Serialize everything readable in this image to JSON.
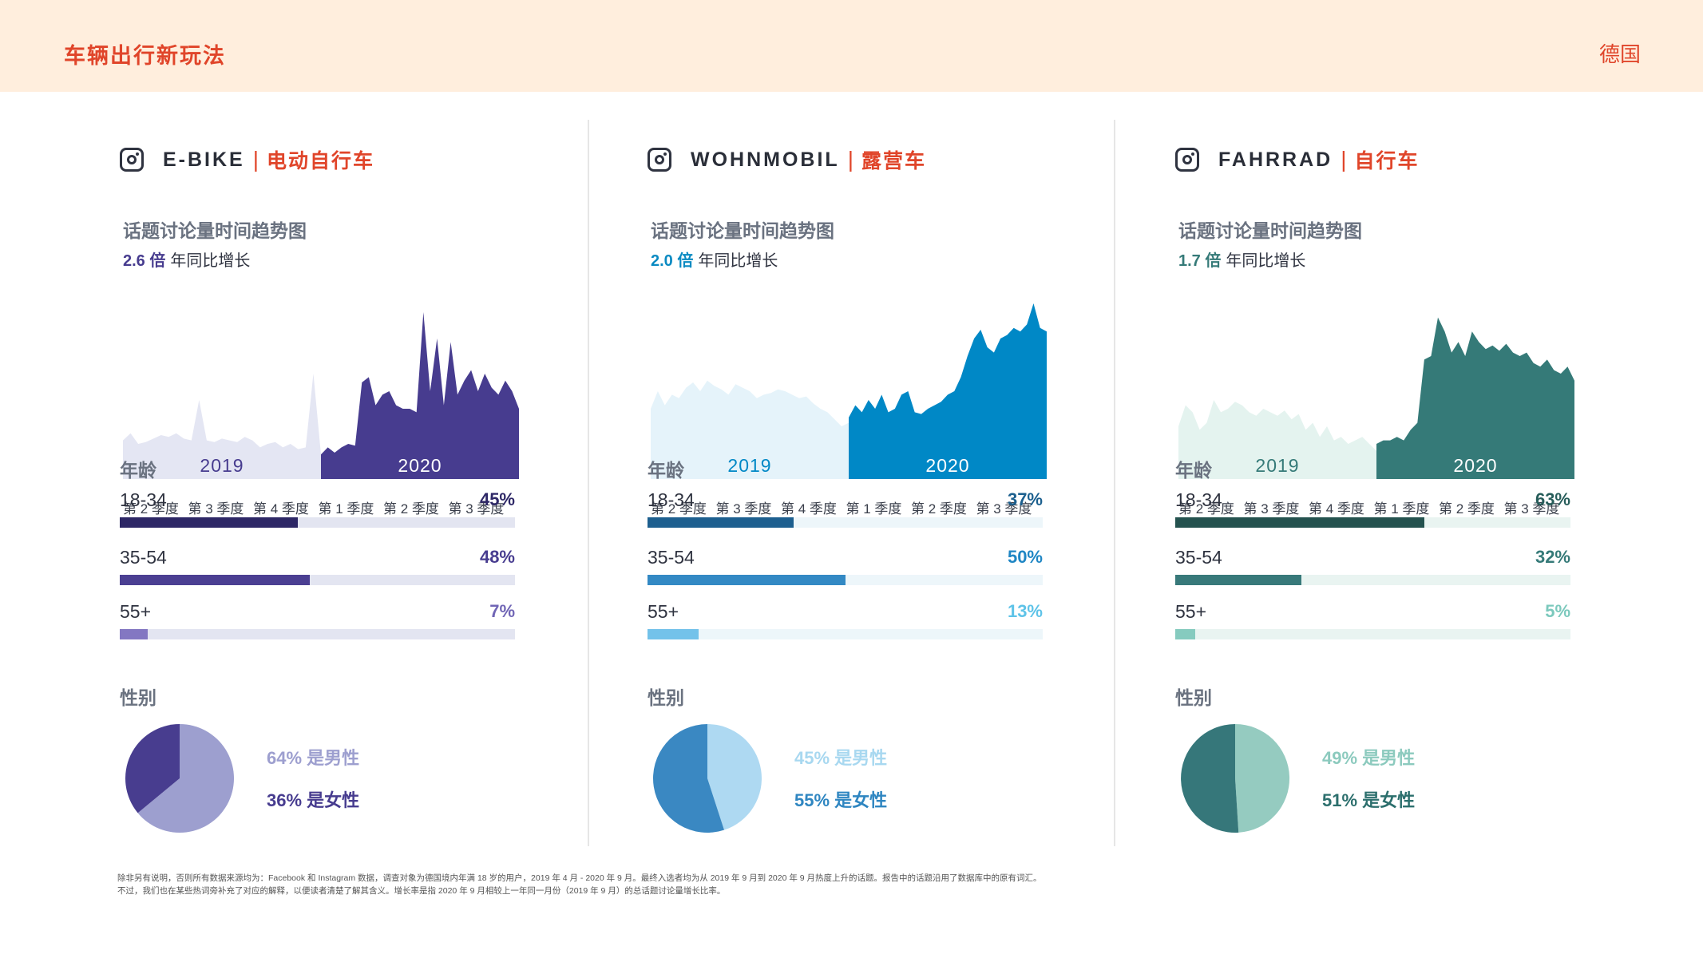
{
  "header": {
    "brand": "车辆出行新玩法",
    "country": "德国"
  },
  "colors": {
    "accent": "#e0452a",
    "header_bg": "#ffeedd"
  },
  "columns": [
    {
      "name_en": "E-BIKE",
      "name_cn": "电动自行车",
      "icon": "instagram-icon",
      "subtitle": "话题讨论量时间趋势图",
      "growth_value": "2.6 倍",
      "growth_label": "年同比增长",
      "age_heading": "年龄",
      "gender_heading": "性别",
      "colors": {
        "dark": "#473c8f",
        "light": "#e4e6f3",
        "growth": "#473c8f",
        "age_bars": [
          "#2d2766",
          "#4b3f92",
          "#8377c2"
        ],
        "age_pcts": [
          "#2d2766",
          "#473c8f",
          "#7065b5"
        ],
        "age_track": "#e3e5f1",
        "pie_male": "#9d9fcf",
        "pie_female": "#483d8f",
        "legend_male": "#9d9fcf",
        "legend_female": "#473c8f"
      },
      "age": [
        {
          "label": "18-34",
          "value": 45,
          "text": "45%"
        },
        {
          "label": "35-54",
          "value": 48,
          "text": "48%"
        },
        {
          "label": "55+",
          "value": 7,
          "text": "7%"
        }
      ],
      "gender": {
        "male": 64,
        "female": 36,
        "male_label": "64% 是男性",
        "female_label": "36% 是女性"
      }
    },
    {
      "name_en": "WOHNMOBIL",
      "name_cn": "露营车",
      "icon": "instagram-icon",
      "subtitle": "话题讨论量时间趋势图",
      "growth_value": "2.0 倍",
      "growth_label": "年同比增长",
      "age_heading": "年龄",
      "gender_heading": "性别",
      "colors": {
        "dark": "#0088c6",
        "light": "#e5f3fa",
        "growth": "#0a8ac2",
        "age_bars": [
          "#1d5f8f",
          "#3389c4",
          "#73c2ea"
        ],
        "age_pcts": [
          "#1b5f8e",
          "#1f86c4",
          "#5ec3e8"
        ],
        "age_track": "#edf6fa",
        "pie_male": "#aed9f2",
        "pie_female": "#3a88c2",
        "legend_male": "#a8d8f0",
        "legend_female": "#2f86c1"
      },
      "age": [
        {
          "label": "18-34",
          "value": 37,
          "text": "37%"
        },
        {
          "label": "35-54",
          "value": 50,
          "text": "50%"
        },
        {
          "label": "55+",
          "value": 13,
          "text": "13%"
        }
      ],
      "gender": {
        "male": 45,
        "female": 55,
        "male_label": "45% 是男性",
        "female_label": "55% 是女性"
      }
    },
    {
      "name_en": "FAHRRAD",
      "name_cn": "自行车",
      "icon": "instagram-icon",
      "subtitle": "话题讨论量时间趋势图",
      "growth_value": "1.7 倍",
      "growth_label": "年同比增长",
      "age_heading": "年龄",
      "gender_heading": "性别",
      "colors": {
        "dark": "#357a78",
        "light": "#e4f3ef",
        "growth": "#357a78",
        "age_bars": [
          "#24524f",
          "#38797a",
          "#86cbbf"
        ],
        "age_pcts": [
          "#275d5a",
          "#357a78",
          "#7cc9bd"
        ],
        "age_track": "#e9f4f1",
        "pie_male": "#95cbc0",
        "pie_female": "#36777a",
        "legend_male": "#8ccabe",
        "legend_female": "#2c6f6d"
      },
      "age": [
        {
          "label": "18-34",
          "value": 63,
          "text": "63%"
        },
        {
          "label": "35-54",
          "value": 32,
          "text": "32%"
        },
        {
          "label": "55+",
          "value": 5,
          "text": "5%"
        }
      ],
      "gender": {
        "male": 49,
        "female": 51,
        "male_label": "49% 是男性",
        "female_label": "51% 是女性"
      }
    }
  ],
  "chart_data": [
    {
      "type": "area",
      "title": "话题讨论量时间趋势图 (E-BIKE)",
      "x_ticks": [
        "第 2 季度",
        "第 3 季度",
        "第 4 季度",
        "第 1 季度",
        "第 2 季度",
        "第 3 季度"
      ],
      "series": [
        {
          "name": "2019",
          "values": [
            22,
            26,
            20,
            21,
            23,
            25,
            24,
            26,
            23,
            22,
            45,
            22,
            21,
            23,
            22,
            21,
            24,
            22,
            18,
            20,
            21,
            18,
            20,
            17,
            18,
            60,
            14
          ]
        },
        {
          "name": "2020",
          "values": [
            14,
            18,
            15,
            18,
            20,
            19,
            55,
            58,
            42,
            48,
            50,
            42,
            40,
            40,
            38,
            95,
            50,
            80,
            42,
            78,
            48,
            56,
            62,
            50,
            60,
            52,
            48,
            56,
            50,
            40
          ]
        }
      ],
      "ylim": [
        0,
        100
      ]
    },
    {
      "type": "area",
      "title": "话题讨论量时间趋势图 (WOHNMOBIL)",
      "x_ticks": [
        "第 2 季度",
        "第 3 季度",
        "第 4 季度",
        "第 1 季度",
        "第 2 季度",
        "第 3 季度"
      ],
      "series": [
        {
          "name": "2019",
          "values": [
            40,
            50,
            42,
            48,
            46,
            52,
            55,
            50,
            56,
            53,
            51,
            48,
            54,
            52,
            50,
            46,
            48,
            49,
            51,
            50,
            48,
            46,
            47,
            43,
            40,
            38,
            34,
            30,
            32
          ]
        },
        {
          "name": "2020",
          "values": [
            35,
            42,
            38,
            45,
            40,
            48,
            38,
            40,
            48,
            50,
            38,
            37,
            40,
            42,
            44,
            48,
            50,
            58,
            70,
            80,
            85,
            75,
            72,
            80,
            82,
            86,
            84,
            88,
            100,
            86,
            84
          ]
        }
      ],
      "ylim": [
        0,
        100
      ]
    },
    {
      "type": "area",
      "title": "话题讨论量时间趋势图 (FAHRRAD)",
      "x_ticks": [
        "第 2 季度",
        "第 3 季度",
        "第 4 季度",
        "第 1 季度",
        "第 2 季度",
        "第 3 季度"
      ],
      "series": [
        {
          "name": "2019",
          "values": [
            30,
            42,
            38,
            28,
            32,
            45,
            38,
            40,
            44,
            42,
            38,
            36,
            40,
            38,
            36,
            39,
            34,
            37,
            28,
            32,
            24,
            30,
            22,
            24,
            20,
            22,
            24,
            20,
            16
          ]
        },
        {
          "name": "2020",
          "values": [
            20,
            22,
            22,
            24,
            22,
            28,
            32,
            68,
            70,
            92,
            84,
            72,
            78,
            70,
            84,
            78,
            74,
            76,
            73,
            77,
            72,
            70,
            72,
            66,
            64,
            68,
            62,
            60,
            64,
            56
          ]
        }
      ],
      "ylim": [
        0,
        100
      ]
    }
  ],
  "footnote": [
    "除非另有说明，否则所有数据来源均为：Facebook 和 Instagram 数据，调查对象为德国境内年满 18 岁的用户，2019 年 4 月 - 2020 年 9 月。最终入选者均为从 2019 年 9 月到 2020 年 9 月热度上升的话题。报告中的话题沿用了数据库中的原有词汇。",
    "不过，我们也在某些热词旁补充了对应的解释，以便读者清楚了解其含义。增长率是指 2020 年 9 月相较上一年同一月份（2019 年 9 月）的总话题讨论量增长比率。"
  ]
}
